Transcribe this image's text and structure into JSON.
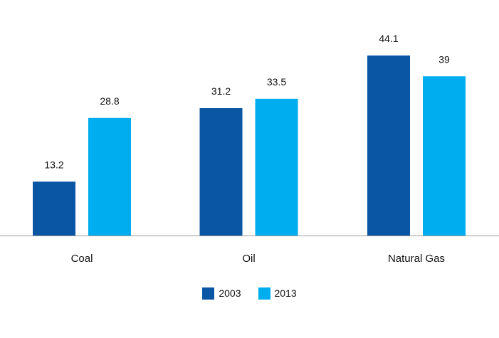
{
  "chart_data": {
    "type": "bar",
    "categories": [
      "Coal",
      "Oil",
      "Natural Gas"
    ],
    "series": [
      {
        "name": "2003",
        "values": [
          13.2,
          31.2,
          44.1
        ],
        "color": "#0B56A4"
      },
      {
        "name": "2013",
        "values": [
          28.8,
          33.5,
          39
        ],
        "color": "#00AEEF"
      }
    ],
    "data_labels": [
      [
        "13.2",
        "31.2",
        "44.1"
      ],
      [
        "28.8",
        "33.5",
        "39"
      ]
    ],
    "title": "",
    "xlabel": "",
    "ylabel": "",
    "ylim": [
      0,
      48
    ],
    "grid": false,
    "legend_position": "bottom-center"
  }
}
